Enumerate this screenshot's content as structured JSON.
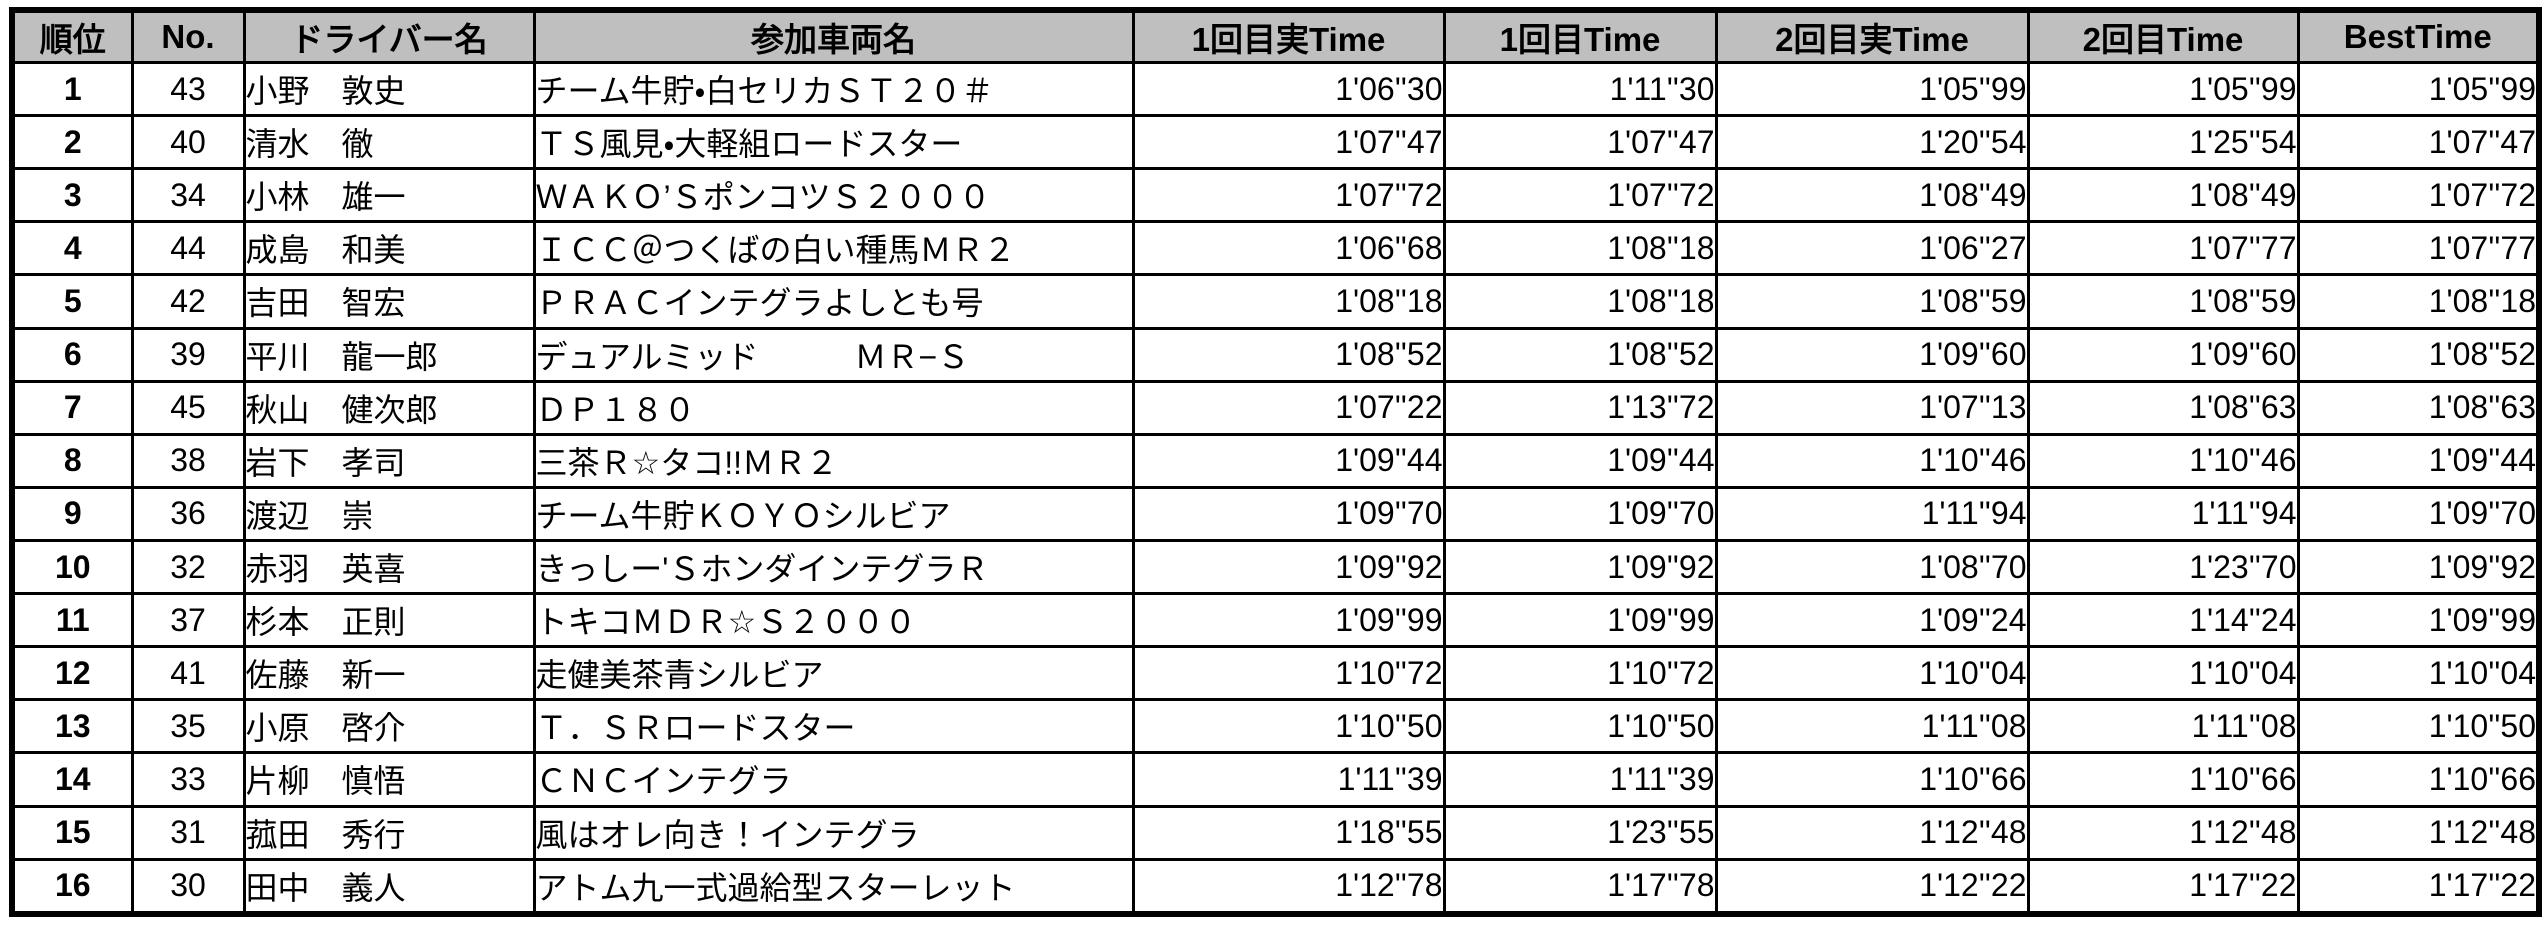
{
  "table": {
    "title": "gymkhana-time-attack-results",
    "colors": {
      "header_bg": "#bfbfbf",
      "rank_column_bg": "#ffffc4",
      "border": "#000000",
      "row_bg": "#ffffff"
    },
    "columns": [
      {
        "key": "rank",
        "label": "順位"
      },
      {
        "key": "no",
        "label": "No."
      },
      {
        "key": "driver",
        "label": "ドライバー名"
      },
      {
        "key": "car",
        "label": "参加車両名"
      },
      {
        "key": "run1_actual",
        "label": "1回目実Time"
      },
      {
        "key": "run1",
        "label": "1回目Time"
      },
      {
        "key": "run2_actual",
        "label": "2回目実Time"
      },
      {
        "key": "run2",
        "label": "2回目Time"
      },
      {
        "key": "best",
        "label": "BestTime"
      }
    ],
    "rows": [
      [
        "1",
        "43",
        "小野　敦史",
        "チーム牛貯・白セリカＳＴ２０＃",
        "1'06''30",
        "1'11''30",
        "1'05''99",
        "1'05''99",
        "1'05''99"
      ],
      [
        "2",
        "40",
        "清水　徹",
        "ＴＳ風見・大軽組ロードスター",
        "1'07''47",
        "1'07''47",
        "1'20''54",
        "1'25''54",
        "1'07''47"
      ],
      [
        "3",
        "34",
        "小林　雄一",
        "ＷＡＫＯ’ＳポンコツＳ２０００",
        "1'07''72",
        "1'07''72",
        "1'08''49",
        "1'08''49",
        "1'07''72"
      ],
      [
        "4",
        "44",
        "成島　和美",
        "ＩＣＣ＠つくばの白い種馬ＭＲ２",
        "1'06''68",
        "1'08''18",
        "1'06''27",
        "1'07''77",
        "1'07''77"
      ],
      [
        "5",
        "42",
        "吉田　智宏",
        "ＰＲＡＣインテグラよしとも号",
        "1'08''18",
        "1'08''18",
        "1'08''59",
        "1'08''59",
        "1'08''18"
      ],
      [
        "6",
        "39",
        "平川　龍一郎",
        "デュアルミッド　　　ＭＲ−Ｓ",
        "1'08''52",
        "1'08''52",
        "1'09''60",
        "1'09''60",
        "1'08''52"
      ],
      [
        "7",
        "45",
        "秋山　健次郎",
        "ＤＰ１８０",
        "1'07''22",
        "1'13''72",
        "1'07''13",
        "1'08''63",
        "1'08''63"
      ],
      [
        "8",
        "38",
        "岩下　孝司",
        "三茶Ｒ☆タコ!!ＭＲ２",
        "1'09''44",
        "1'09''44",
        "1'10''46",
        "1'10''46",
        "1'09''44"
      ],
      [
        "9",
        "36",
        "渡辺　崇",
        "チーム牛貯ＫＯＹＯシルビア",
        "1'09''70",
        "1'09''70",
        "1'11''94",
        "1'11''94",
        "1'09''70"
      ],
      [
        "10",
        "32",
        "赤羽　英喜",
        "きっしー'ＳホンダインテグラＲ",
        "1'09''92",
        "1'09''92",
        "1'08''70",
        "1'23''70",
        "1'09''92"
      ],
      [
        "11",
        "37",
        "杉本　正則",
        "トキコＭＤＲ☆Ｓ２０００",
        "1'09''99",
        "1'09''99",
        "1'09''24",
        "1'14''24",
        "1'09''99"
      ],
      [
        "12",
        "41",
        "佐藤　新一",
        "走健美茶青シルビア",
        "1'10''72",
        "1'10''72",
        "1'10''04",
        "1'10''04",
        "1'10''04"
      ],
      [
        "13",
        "35",
        "小原　啓介",
        "Ｔ．ＳＲロードスター",
        "1'10''50",
        "1'10''50",
        "1'11''08",
        "1'11''08",
        "1'10''50"
      ],
      [
        "14",
        "33",
        "片柳　慎悟",
        "ＣＮＣインテグラ",
        "1'11''39",
        "1'11''39",
        "1'10''66",
        "1'10''66",
        "1'10''66"
      ],
      [
        "15",
        "31",
        "菰田　秀行",
        "風はオレ向き！インテグラ",
        "1'18''55",
        "1'23''55",
        "1'12''48",
        "1'12''48",
        "1'12''48"
      ],
      [
        "16",
        "30",
        "田中　義人",
        "アトム九一式過給型スターレット",
        "1'12''78",
        "1'17''78",
        "1'12''22",
        "1'17''22",
        "1'17''22"
      ]
    ]
  }
}
